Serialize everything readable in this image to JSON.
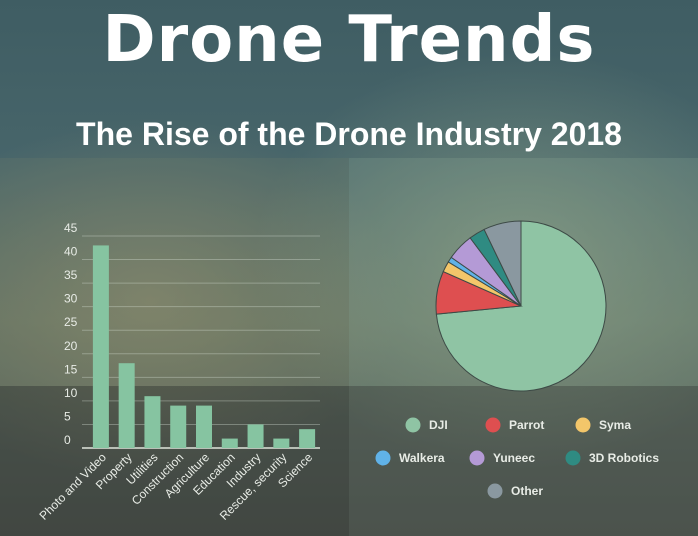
{
  "header": {
    "title": "Drone Trends",
    "subtitle": "The Rise of the Drone Industry 2018"
  },
  "colors": {
    "bar": "#86c4a1",
    "axis": "#dfe6dc",
    "grid": "rgba(220,230,220,0.35)"
  },
  "chart_data": [
    {
      "type": "bar",
      "categories": [
        "Photo and Video",
        "Property",
        "Utilities",
        "Construction",
        "Agriculture",
        "Education",
        "Industry",
        "Rescue, security",
        "Science"
      ],
      "values": [
        43,
        18,
        11,
        9,
        9,
        2,
        5,
        2,
        4
      ],
      "ylim": [
        0,
        45
      ],
      "yticks": [
        0,
        5,
        10,
        15,
        20,
        25,
        30,
        35,
        40,
        45
      ],
      "grid": true
    },
    {
      "type": "pie",
      "labels": [
        "DJI",
        "Parrot",
        "Syma",
        "Walkera",
        "Yuneec",
        "3D Robotics",
        "Other"
      ],
      "values": [
        72,
        8,
        2,
        1,
        5,
        3,
        7
      ],
      "colors": [
        "#8fc4a4",
        "#de4f50",
        "#f3c66a",
        "#60b2e8",
        "#b49ad6",
        "#2f8b82",
        "#8a98a0"
      ],
      "legend": "bottom"
    }
  ]
}
